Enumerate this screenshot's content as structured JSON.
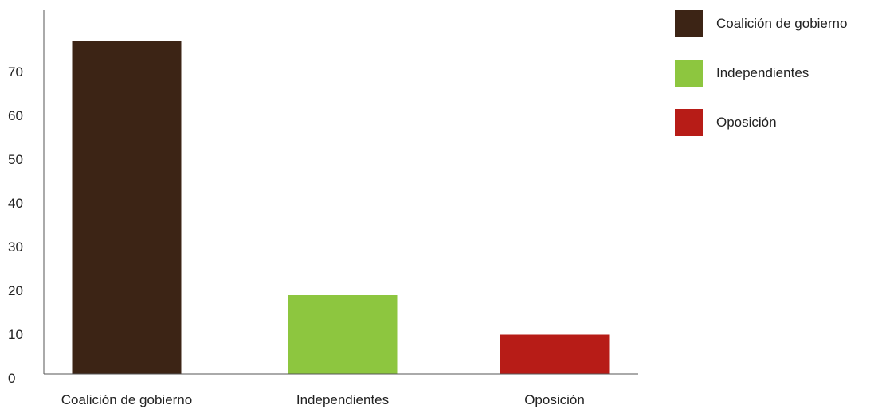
{
  "chart_data": {
    "type": "bar",
    "categories": [
      "Coalición de gobierno",
      "Independientes",
      "Oposición"
    ],
    "values": [
      76,
      18,
      9
    ],
    "colors": [
      "#3c2415",
      "#8dc63f",
      "#b71c17"
    ],
    "title": "",
    "xlabel": "",
    "ylabel": "",
    "ylim": [
      0,
      80
    ],
    "yticks": [
      0,
      10,
      20,
      30,
      40,
      50,
      60,
      70
    ],
    "grid": false,
    "legend_position": "top-right"
  },
  "legend": {
    "items": [
      {
        "label": "Coalición de gobierno",
        "color": "#3c2415"
      },
      {
        "label": "Independientes",
        "color": "#8dc63f"
      },
      {
        "label": "Oposición",
        "color": "#b71c17"
      }
    ]
  }
}
